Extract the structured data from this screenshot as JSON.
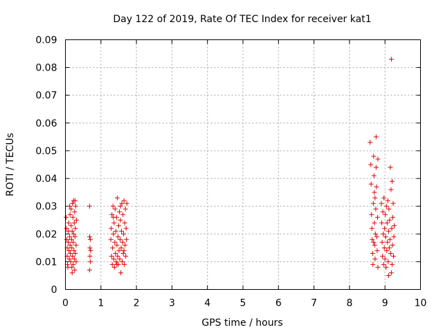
{
  "chart_data": {
    "type": "scatter",
    "title": "Day 122 of 2019, Rate Of TEC Index for receiver kat1",
    "xlabel": "GPS time / hours",
    "ylabel": "ROTI / TECUs",
    "xlim": [
      0,
      10
    ],
    "ylim": [
      0,
      0.09
    ],
    "x_ticks": [
      "0",
      "1",
      "2",
      "3",
      "4",
      "5",
      "6",
      "7",
      "8",
      "9",
      "10"
    ],
    "y_ticks": [
      "0",
      "0.01",
      "0.02",
      "0.03",
      "0.04",
      "0.05",
      "0.06",
      "0.07",
      "0.08",
      "0.09"
    ],
    "grid": true,
    "marker": "+",
    "color": "#e00000",
    "series": [
      {
        "name": "kat1",
        "points": [
          [
            0.02,
            0.026
          ],
          [
            0.03,
            0.022
          ],
          [
            0.04,
            0.018
          ],
          [
            0.05,
            0.015
          ],
          [
            0.05,
            0.012
          ],
          [
            0.06,
            0.009
          ],
          [
            0.07,
            0.008
          ],
          [
            0.08,
            0.021
          ],
          [
            0.09,
            0.024
          ],
          [
            0.1,
            0.014
          ],
          [
            0.11,
            0.011
          ],
          [
            0.12,
            0.019
          ],
          [
            0.13,
            0.016
          ],
          [
            0.13,
            0.027
          ],
          [
            0.14,
            0.013
          ],
          [
            0.15,
            0.01
          ],
          [
            0.16,
            0.023
          ],
          [
            0.16,
            0.029
          ],
          [
            0.17,
            0.018
          ],
          [
            0.18,
            0.008
          ],
          [
            0.18,
            0.015
          ],
          [
            0.19,
            0.021
          ],
          [
            0.2,
            0.031
          ],
          [
            0.2,
            0.012
          ],
          [
            0.21,
            0.026
          ],
          [
            0.22,
            0.017
          ],
          [
            0.22,
            0.009
          ],
          [
            0.23,
            0.02
          ],
          [
            0.23,
            0.032
          ],
          [
            0.24,
            0.014
          ],
          [
            0.25,
            0.011
          ],
          [
            0.25,
            0.024
          ],
          [
            0.26,
            0.028
          ],
          [
            0.26,
            0.007
          ],
          [
            0.27,
            0.019
          ],
          [
            0.28,
            0.013
          ],
          [
            0.28,
            0.022
          ],
          [
            0.29,
            0.03
          ],
          [
            0.3,
            0.016
          ],
          [
            0.3,
            0.01
          ],
          [
            0.31,
            0.025
          ],
          [
            0.12,
            0.03
          ],
          [
            0.19,
            0.006
          ],
          [
            0.27,
            0.032
          ],
          [
            0.08,
            0.017
          ],
          [
            0.68,
            0.03
          ],
          [
            0.68,
            0.019
          ],
          [
            0.68,
            0.007
          ],
          [
            0.69,
            0.015
          ],
          [
            0.69,
            0.012
          ],
          [
            0.7,
            0.018
          ],
          [
            0.7,
            0.01
          ],
          [
            0.71,
            0.014
          ],
          [
            1.28,
            0.018
          ],
          [
            1.29,
            0.022
          ],
          [
            1.3,
            0.012
          ],
          [
            1.31,
            0.027
          ],
          [
            1.32,
            0.009
          ],
          [
            1.33,
            0.015
          ],
          [
            1.34,
            0.03
          ],
          [
            1.35,
            0.02
          ],
          [
            1.36,
            0.011
          ],
          [
            1.37,
            0.024
          ],
          [
            1.38,
            0.008
          ],
          [
            1.39,
            0.017
          ],
          [
            1.4,
            0.029
          ],
          [
            1.41,
            0.013
          ],
          [
            1.42,
            0.021
          ],
          [
            1.43,
            0.01
          ],
          [
            1.44,
            0.026
          ],
          [
            1.45,
            0.016
          ],
          [
            1.46,
            0.033
          ],
          [
            1.47,
            0.012
          ],
          [
            1.48,
            0.019
          ],
          [
            1.49,
            0.009
          ],
          [
            1.5,
            0.023
          ],
          [
            1.51,
            0.014
          ],
          [
            1.52,
            0.028
          ],
          [
            1.53,
            0.011
          ],
          [
            1.54,
            0.018
          ],
          [
            1.55,
            0.025
          ],
          [
            1.56,
            0.006
          ],
          [
            1.57,
            0.015
          ],
          [
            1.58,
            0.021
          ],
          [
            1.59,
            0.031
          ],
          [
            1.6,
            0.01
          ],
          [
            1.61,
            0.017
          ],
          [
            1.62,
            0.027
          ],
          [
            1.63,
            0.013
          ],
          [
            1.64,
            0.02
          ],
          [
            1.65,
            0.032
          ],
          [
            1.66,
            0.009
          ],
          [
            1.67,
            0.024
          ],
          [
            1.68,
            0.016
          ],
          [
            1.69,
            0.029
          ],
          [
            1.7,
            0.012
          ],
          [
            1.71,
            0.022
          ],
          [
            1.72,
            0.018
          ],
          [
            1.73,
            0.031
          ],
          [
            1.35,
            0.026
          ],
          [
            1.45,
            0.009
          ],
          [
            1.55,
            0.03
          ],
          [
            1.65,
            0.014
          ],
          [
            8.58,
            0.053
          ],
          [
            8.6,
            0.045
          ],
          [
            8.61,
            0.038
          ],
          [
            8.62,
            0.027
          ],
          [
            8.63,
            0.022
          ],
          [
            8.64,
            0.018
          ],
          [
            8.65,
            0.013
          ],
          [
            8.66,
            0.009
          ],
          [
            8.67,
            0.031
          ],
          [
            8.68,
            0.048
          ],
          [
            8.69,
            0.041
          ],
          [
            8.7,
            0.035
          ],
          [
            8.7,
            0.024
          ],
          [
            8.71,
            0.016
          ],
          [
            8.72,
            0.011
          ],
          [
            8.73,
            0.02
          ],
          [
            8.74,
            0.029
          ],
          [
            8.75,
            0.055
          ],
          [
            8.75,
            0.044
          ],
          [
            8.76,
            0.037
          ],
          [
            8.77,
            0.019
          ],
          [
            8.78,
            0.014
          ],
          [
            8.79,
            0.026
          ],
          [
            8.8,
            0.047
          ],
          [
            8.8,
            0.008
          ],
          [
            8.68,
            0.017
          ],
          [
            8.72,
            0.033
          ],
          [
            8.9,
            0.031
          ],
          [
            8.91,
            0.024
          ],
          [
            8.92,
            0.017
          ],
          [
            8.93,
            0.012
          ],
          [
            8.94,
            0.028
          ],
          [
            8.95,
            0.02
          ],
          [
            8.96,
            0.009
          ],
          [
            8.97,
            0.033
          ],
          [
            8.98,
            0.015
          ],
          [
            8.99,
            0.022
          ],
          [
            9.0,
            0.011
          ],
          [
            9.01,
            0.027
          ],
          [
            9.02,
            0.019
          ],
          [
            9.03,
            0.008
          ],
          [
            9.04,
            0.03
          ],
          [
            9.05,
            0.014
          ],
          [
            9.06,
            0.024
          ],
          [
            9.07,
            0.017
          ],
          [
            9.08,
            0.032
          ],
          [
            9.09,
            0.01
          ],
          [
            9.1,
            0.021
          ],
          [
            9.11,
            0.029
          ],
          [
            9.12,
            0.015
          ],
          [
            9.13,
            0.025
          ],
          [
            9.14,
            0.018
          ],
          [
            9.15,
            0.044
          ],
          [
            9.16,
            0.013
          ],
          [
            9.17,
            0.036
          ],
          [
            9.18,
            0.006
          ],
          [
            9.18,
            0.083
          ],
          [
            9.19,
            0.022
          ],
          [
            9.2,
            0.039
          ],
          [
            9.21,
            0.016
          ],
          [
            9.22,
            0.026
          ],
          [
            9.23,
            0.031
          ],
          [
            9.24,
            0.012
          ],
          [
            9.25,
            0.019
          ],
          [
            9.26,
            0.023
          ],
          [
            9.1,
            0.005
          ],
          [
            9.2,
            0.009
          ]
        ]
      }
    ]
  }
}
